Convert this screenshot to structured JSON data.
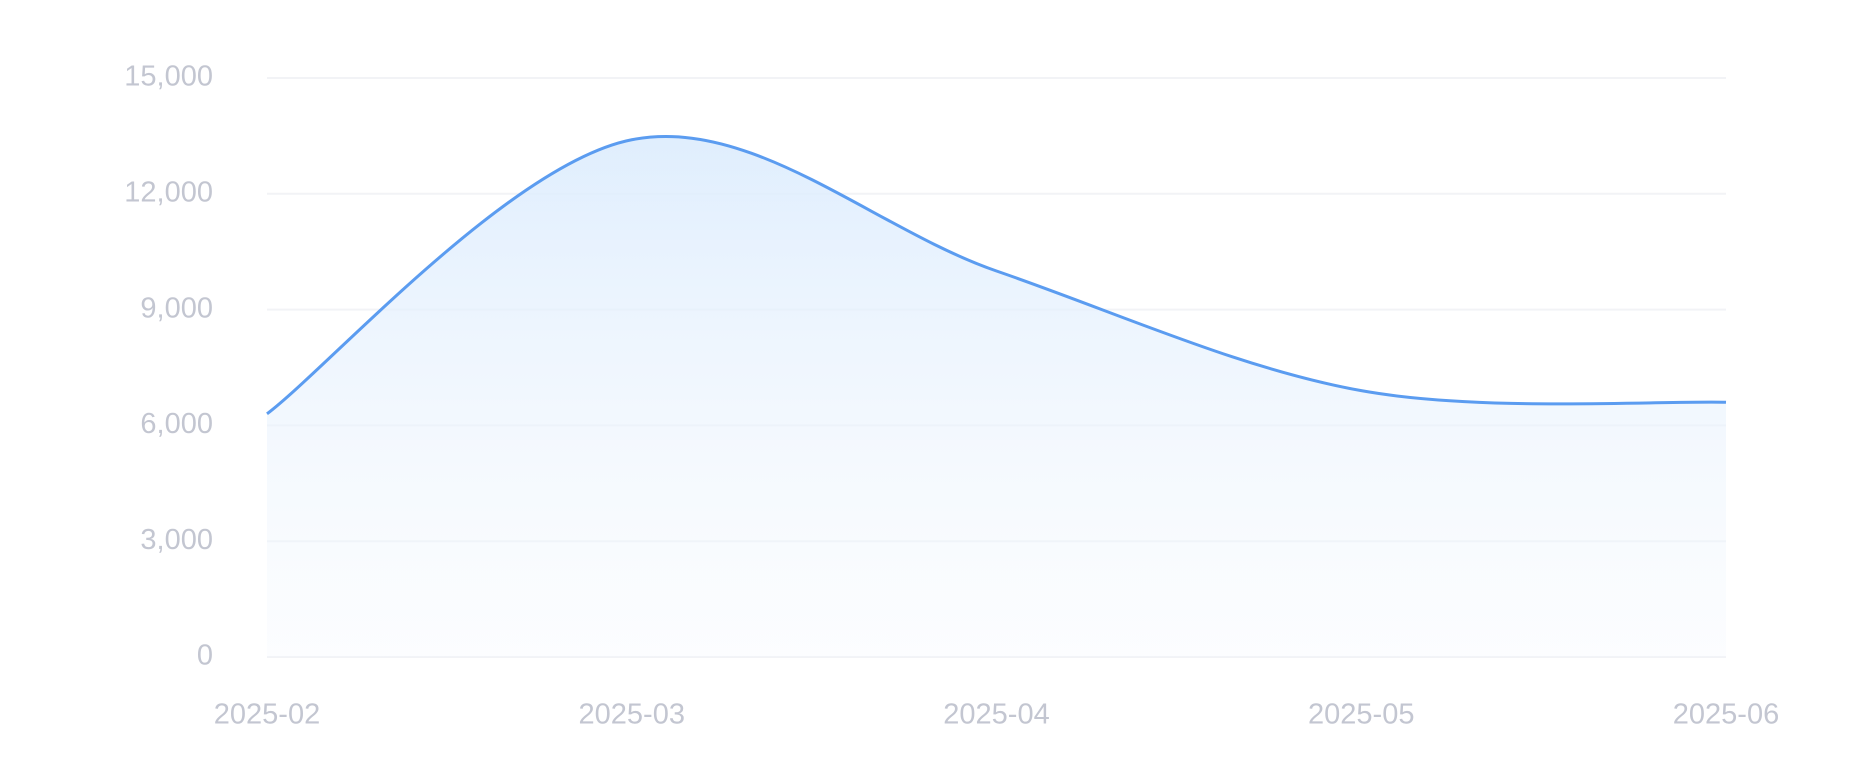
{
  "chart_data": {
    "type": "area",
    "x": [
      "2025-02",
      "2025-03",
      "2025-04",
      "2025-05",
      "2025-06"
    ],
    "values": [
      6300,
      13400,
      10000,
      6900,
      6600
    ],
    "color": "#5b9cf0",
    "ylim": [
      0,
      15000
    ],
    "yticks": [
      0,
      {
        "value": 3000,
        "label": "3,000"
      },
      {
        "value": 6000,
        "label": "6,000"
      },
      {
        "value": 9000,
        "label": "9,000"
      },
      {
        "value": 12000,
        "label": "12,000"
      },
      {
        "value": 15000,
        "label": "15,000"
      }
    ],
    "grid": true,
    "smooth": true
  }
}
